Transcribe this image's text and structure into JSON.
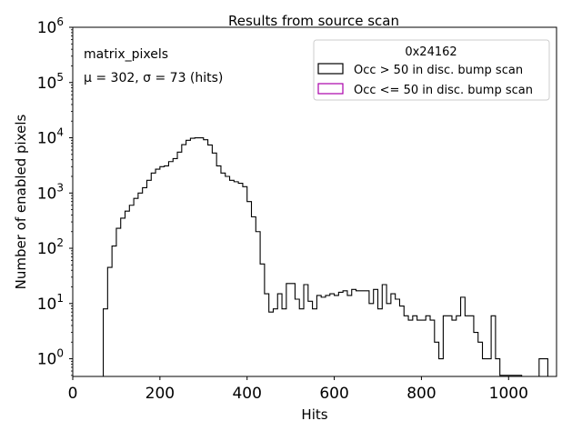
{
  "chart_data": {
    "type": "step-histogram",
    "title": "Results from source scan",
    "xlabel": "Hits",
    "ylabel": "Number of enabled pixels",
    "xlim": [
      0,
      1110
    ],
    "ylim_log10": [
      -0.32,
      6
    ],
    "yscale": "log",
    "grid": false,
    "x_ticks": [
      {
        "value": 0,
        "label": "0"
      },
      {
        "value": 200,
        "label": "200"
      },
      {
        "value": 400,
        "label": "400"
      },
      {
        "value": 600,
        "label": "600"
      },
      {
        "value": 800,
        "label": "800"
      },
      {
        "value": 1000,
        "label": "1000"
      }
    ],
    "y_ticks": [
      {
        "exp": 0,
        "base": "10",
        "sup": "0"
      },
      {
        "exp": 1,
        "base": "10",
        "sup": "1"
      },
      {
        "exp": 2,
        "base": "10",
        "sup": "2"
      },
      {
        "exp": 3,
        "base": "10",
        "sup": "3"
      },
      {
        "exp": 4,
        "base": "10",
        "sup": "4"
      },
      {
        "exp": 5,
        "base": "10",
        "sup": "5"
      },
      {
        "exp": 6,
        "base": "10",
        "sup": "6"
      }
    ],
    "annotations": {
      "name": "matrix_pixels",
      "stats": "μ = 302, σ = 73 (hits)"
    },
    "legend": {
      "title": "0x24162",
      "placement": "top-right",
      "entries": [
        {
          "label": "Occ > 50 in disc. bump scan",
          "color": "#000000"
        },
        {
          "label": "Occ <= 50 in disc. bump scan",
          "color": "#aa00aa"
        }
      ]
    },
    "series": [
      {
        "name": "Occ > 50 in disc. bump scan",
        "color": "#000000",
        "bin_width": 10,
        "x_start": 60,
        "counts": [
          0,
          8,
          45,
          110,
          230,
          350,
          470,
          600,
          800,
          1000,
          1250,
          1700,
          2300,
          2700,
          3000,
          3100,
          3700,
          4200,
          5500,
          7500,
          9000,
          9800,
          10000,
          10000,
          9200,
          7400,
          5300,
          3100,
          2300,
          2000,
          1700,
          1600,
          1500,
          1300,
          700,
          370,
          200,
          52,
          15,
          7,
          8,
          15,
          8,
          23,
          23,
          12,
          8,
          22,
          11,
          8,
          14,
          13,
          14,
          15,
          14,
          16,
          17,
          14,
          18,
          17,
          17,
          17,
          10,
          18,
          8,
          22,
          10,
          15,
          12,
          9,
          6,
          5,
          6,
          5,
          5,
          6,
          5,
          2,
          1,
          6,
          6,
          5,
          6,
          13,
          6,
          6,
          3,
          2,
          1,
          1,
          6,
          1,
          0.5,
          0.5,
          0.5,
          0.5,
          0.5,
          0,
          0,
          0,
          0,
          1,
          1,
          0
        ]
      }
    ]
  }
}
